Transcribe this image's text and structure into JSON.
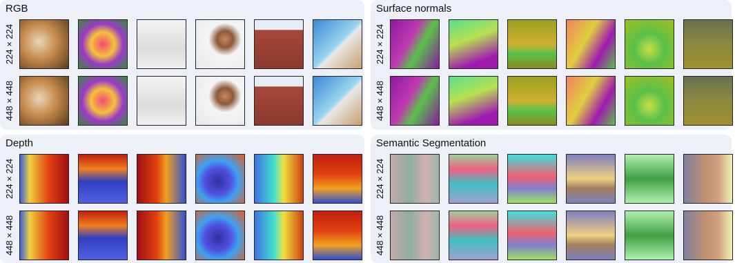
{
  "panels": [
    {
      "title": "RGB",
      "row_labels": [
        "224 × 224",
        "448 × 448"
      ]
    },
    {
      "title": "Surface normals",
      "row_labels": [
        "224 × 224",
        "448 × 448"
      ]
    },
    {
      "title": "Depth",
      "row_labels": [
        "224 × 224",
        "448 × 448"
      ]
    },
    {
      "title": "Semantic Segmentation",
      "row_labels": [
        "224 × 224",
        "448 × 448"
      ]
    }
  ]
}
